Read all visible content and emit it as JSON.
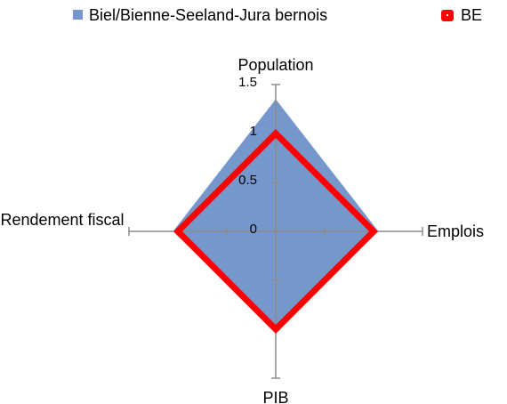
{
  "chart_data": {
    "type": "radar",
    "categories": [
      "Population",
      "Emplois",
      "PIB",
      "Rendement fiscal"
    ],
    "series": [
      {
        "name": "Biel/Bienne-Seeland-Jura bernois",
        "color": "#7597cb",
        "values": [
          1.35,
          1.05,
          1.02,
          1.05
        ]
      },
      {
        "name": "BE",
        "color": "#ff0000",
        "values": [
          1,
          1,
          1,
          1
        ]
      }
    ],
    "rlim": [
      0,
      1.5
    ],
    "rticks": [
      0,
      0.5,
      1,
      1.5
    ],
    "legend": "top"
  }
}
